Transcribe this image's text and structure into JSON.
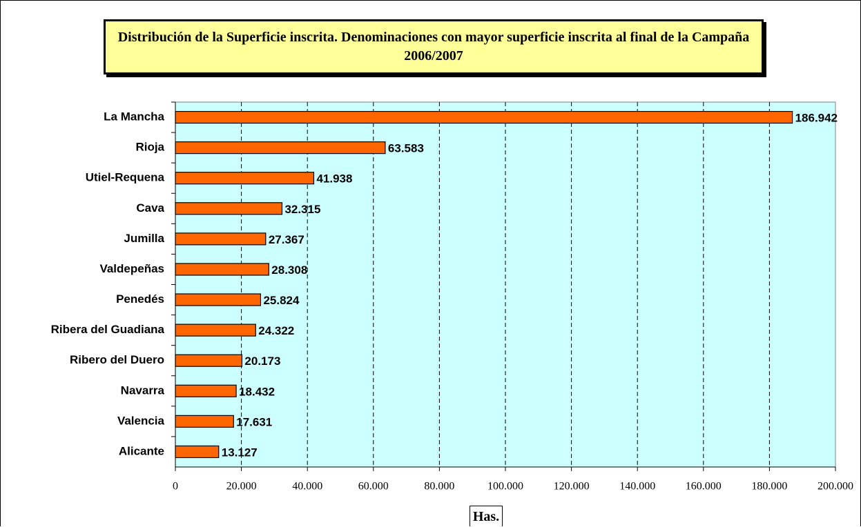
{
  "chart_data": {
    "type": "bar",
    "orientation": "horizontal",
    "title": "Distribución de la Superficie inscrita. Denominaciones con mayor superficie inscrita al final de la Campaña 2006/2007",
    "x_label": "Has.",
    "categories": [
      "La Mancha",
      "Rioja",
      "Utiel-Requena",
      "Cava",
      "Jumilla",
      "Valdepeñas",
      "Penedés",
      "Ribera del Guadiana",
      "Ribero del Duero",
      "Navarra",
      "Valencia",
      "Alicante"
    ],
    "values": [
      186942,
      63583,
      41938,
      32315,
      27367,
      28308,
      25824,
      24322,
      20173,
      18432,
      17631,
      13127
    ],
    "value_labels": [
      "186.942",
      "63.583",
      "41.938",
      "32.315",
      "27.367",
      "28.308",
      "25.824",
      "24.322",
      "20.173",
      "18.432",
      "17.631",
      "13.127"
    ],
    "color": "#ff6600",
    "xlim": [
      0,
      200000
    ],
    "xticks": [
      0,
      {
        "value": 20000,
        "label": "20.000"
      },
      {
        "value": 40000,
        "label": "40.000"
      },
      {
        "value": 60000,
        "label": "60.000"
      },
      {
        "value": 80000,
        "label": "80.000"
      },
      {
        "value": 100000,
        "label": "100.000"
      },
      {
        "value": 120000,
        "label": "120.000"
      },
      {
        "value": 140000,
        "label": "140.000"
      },
      {
        "value": 160000,
        "label": "160.000"
      },
      {
        "value": 180000,
        "label": "180.000"
      },
      {
        "value": 200000,
        "label": "200.000"
      }
    ],
    "grid": true
  }
}
